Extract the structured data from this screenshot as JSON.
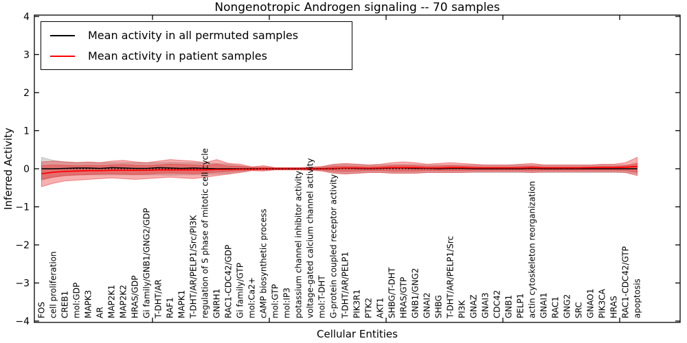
{
  "chart_data": {
    "type": "line",
    "title": "Nongenotropic Androgen signaling -- 70 samples",
    "xlabel": "Cellular Entities",
    "ylabel": "Inferred Activity",
    "ylim": [
      -4,
      4
    ],
    "grid": false,
    "legend_position": "upper left",
    "zero_reference_line": {
      "y": 0,
      "style": "dotted",
      "color": "#000000"
    },
    "yticks": [
      {
        "v": 4,
        "label": "4"
      },
      {
        "v": 3,
        "label": "3"
      },
      {
        "v": 2,
        "label": "2"
      },
      {
        "v": 1,
        "label": "1"
      },
      {
        "v": 0,
        "label": "0"
      },
      {
        "v": -1,
        "label": "−1"
      },
      {
        "v": -2,
        "label": "−2"
      },
      {
        "v": -3,
        "label": "−3"
      },
      {
        "v": -4,
        "label": "−4"
      }
    ],
    "xtick_units": [
      10,
      20,
      30,
      40,
      50
    ],
    "categories": [
      "FOS",
      "cell proliferation",
      "CREB1",
      "mol:GDP",
      "MAPK3",
      "AR",
      "MAP2K1",
      "MAP2K2",
      "HRAS/GDP",
      "Gi family/GNB1/GNG2/GDP",
      "T-DHT/AR",
      "RAF1",
      "MAPK1",
      "T-DHT/AR/PELP1/Src/PI3K",
      "regulation of S phase of mitotic cell cycle",
      "GNRH1",
      "RAC1-CDC42/GDP",
      "Gi family/GTP",
      "mol:Ca2+",
      "cAMP biosynthetic process",
      "mol:GTP",
      "mol:IP3",
      "potassium channel inhibitor activity",
      "voltage-gated calcium channel activity",
      "mol:T-DHT",
      "G-protein coupled receptor activity",
      "T-DHT/AR/PELP1",
      "PIK3R1",
      "PTK2",
      "AKT1",
      "SHBG/T-DHT",
      "HRAS/GTP",
      "GNB1/GNG2",
      "GNAI2",
      "SHBG",
      "T-DHT/AR/PELP1/Src",
      "PI3K",
      "GNAZ",
      "GNAI3",
      "CDC42",
      "GNB1",
      "PELP1",
      "actin cytoskeleton reorganization",
      "GNAI1",
      "RAC1",
      "GNG2",
      "SRC",
      "GNAO1",
      "PIK3CA",
      "HRAS",
      "RAC1-CDC42/GTP",
      "apoptosis"
    ],
    "series": [
      {
        "name": "Mean activity in all permuted samples",
        "color": "#000000",
        "values": [
          0.0,
          0.0,
          0.01,
          0.02,
          0.02,
          0.01,
          0.03,
          0.02,
          0.01,
          0.01,
          0.03,
          0.02,
          0.01,
          0.02,
          0.01,
          0.0,
          0.0,
          0.0,
          0.0,
          0.0,
          0.0,
          0.0,
          0.0,
          0.0,
          0.0,
          0.0,
          0.02,
          0.01,
          0.0,
          0.01,
          0.02,
          0.02,
          0.01,
          0.01,
          0.0,
          0.01,
          0.01,
          0.0,
          0.0,
          0.0,
          0.0,
          0.0,
          0.01,
          0.0,
          0.0,
          0.0,
          0.0,
          0.0,
          0.0,
          0.0,
          0.0,
          0.0
        ]
      },
      {
        "name": "Mean activity in patient samples",
        "color": "#ff0000",
        "values": [
          -0.13,
          -0.09,
          -0.07,
          -0.06,
          -0.05,
          -0.05,
          -0.04,
          -0.04,
          -0.04,
          -0.04,
          -0.03,
          -0.03,
          -0.03,
          -0.03,
          -0.03,
          -0.02,
          -0.02,
          -0.01,
          -0.01,
          0.0,
          0.0,
          0.0,
          0.0,
          0.0,
          0.0,
          0.01,
          0.02,
          0.02,
          0.01,
          0.02,
          0.03,
          0.03,
          0.03,
          0.02,
          0.02,
          0.03,
          0.03,
          0.02,
          0.02,
          0.02,
          0.02,
          0.02,
          0.03,
          0.02,
          0.02,
          0.02,
          0.02,
          0.03,
          0.03,
          0.03,
          0.04,
          0.06
        ]
      }
    ],
    "bands": [
      {
        "name": "permuted-samples-std-band",
        "color": "#aaaaaa",
        "opacity": 0.45,
        "upper": [
          0.3,
          0.22,
          0.18,
          0.17,
          0.16,
          0.16,
          0.16,
          0.16,
          0.16,
          0.16,
          0.16,
          0.17,
          0.16,
          0.16,
          0.15,
          0.14,
          0.12,
          0.08,
          0.04,
          0.04,
          0.03,
          0.03,
          0.03,
          0.03,
          0.05,
          0.1,
          0.12,
          0.12,
          0.1,
          0.1,
          0.11,
          0.11,
          0.11,
          0.1,
          0.1,
          0.1,
          0.1,
          0.1,
          0.1,
          0.1,
          0.1,
          0.1,
          0.1,
          0.1,
          0.1,
          0.1,
          0.1,
          0.1,
          0.1,
          0.1,
          0.1,
          0.1
        ],
        "lower": [
          -0.3,
          -0.22,
          -0.18,
          -0.17,
          -0.16,
          -0.16,
          -0.16,
          -0.16,
          -0.16,
          -0.16,
          -0.16,
          -0.17,
          -0.16,
          -0.16,
          -0.15,
          -0.14,
          -0.12,
          -0.08,
          -0.04,
          -0.04,
          -0.03,
          -0.03,
          -0.03,
          -0.03,
          -0.05,
          -0.1,
          -0.12,
          -0.12,
          -0.1,
          -0.1,
          -0.11,
          -0.11,
          -0.11,
          -0.1,
          -0.1,
          -0.1,
          -0.1,
          -0.1,
          -0.1,
          -0.1,
          -0.1,
          -0.1,
          -0.1,
          -0.1,
          -0.1,
          -0.1,
          -0.1,
          -0.1,
          -0.1,
          -0.1,
          -0.1,
          -0.14
        ]
      },
      {
        "name": "patient-samples-outer-band",
        "color": "#e83030",
        "opacity": 0.38,
        "upper": [
          0.18,
          0.2,
          0.18,
          0.16,
          0.18,
          0.16,
          0.2,
          0.22,
          0.18,
          0.16,
          0.2,
          0.24,
          0.22,
          0.2,
          0.16,
          0.24,
          0.14,
          0.12,
          0.05,
          0.08,
          0.03,
          0.03,
          0.03,
          0.04,
          0.06,
          0.12,
          0.14,
          0.12,
          0.1,
          0.12,
          0.16,
          0.18,
          0.16,
          0.12,
          0.14,
          0.16,
          0.14,
          0.12,
          0.1,
          0.1,
          0.1,
          0.12,
          0.14,
          0.1,
          0.1,
          0.1,
          0.1,
          0.1,
          0.12,
          0.12,
          0.16,
          0.3
        ],
        "lower": [
          -0.47,
          -0.38,
          -0.32,
          -0.3,
          -0.28,
          -0.26,
          -0.24,
          -0.26,
          -0.28,
          -0.26,
          -0.24,
          -0.22,
          -0.24,
          -0.26,
          -0.22,
          -0.18,
          -0.14,
          -0.1,
          -0.05,
          -0.06,
          -0.03,
          -0.03,
          -0.03,
          -0.04,
          -0.06,
          -0.12,
          -0.14,
          -0.12,
          -0.1,
          -0.1,
          -0.12,
          -0.12,
          -0.12,
          -0.1,
          -0.1,
          -0.1,
          -0.1,
          -0.08,
          -0.08,
          -0.08,
          -0.08,
          -0.08,
          -0.1,
          -0.08,
          -0.08,
          -0.08,
          -0.08,
          -0.08,
          -0.08,
          -0.08,
          -0.1,
          -0.18
        ]
      },
      {
        "name": "patient-samples-inner-band",
        "color": "#e83030",
        "opacity": 0.38,
        "upper": [
          0.08,
          0.1,
          0.09,
          0.08,
          0.09,
          0.08,
          0.1,
          0.11,
          0.09,
          0.08,
          0.1,
          0.12,
          0.11,
          0.1,
          0.08,
          0.12,
          0.07,
          0.06,
          0.03,
          0.04,
          0.02,
          0.02,
          0.02,
          0.02,
          0.03,
          0.06,
          0.07,
          0.06,
          0.05,
          0.06,
          0.08,
          0.09,
          0.08,
          0.06,
          0.07,
          0.08,
          0.07,
          0.06,
          0.05,
          0.05,
          0.05,
          0.06,
          0.07,
          0.05,
          0.05,
          0.05,
          0.05,
          0.05,
          0.06,
          0.06,
          0.08,
          0.15
        ],
        "lower": [
          -0.28,
          -0.22,
          -0.18,
          -0.16,
          -0.15,
          -0.14,
          -0.13,
          -0.14,
          -0.15,
          -0.14,
          -0.12,
          -0.11,
          -0.12,
          -0.13,
          -0.11,
          -0.09,
          -0.07,
          -0.05,
          -0.03,
          -0.03,
          -0.02,
          -0.02,
          -0.02,
          -0.02,
          -0.03,
          -0.06,
          -0.07,
          -0.06,
          -0.05,
          -0.05,
          -0.06,
          -0.06,
          -0.06,
          -0.05,
          -0.05,
          -0.05,
          -0.05,
          -0.04,
          -0.04,
          -0.04,
          -0.04,
          -0.04,
          -0.05,
          -0.04,
          -0.04,
          -0.04,
          -0.04,
          -0.04,
          -0.04,
          -0.04,
          -0.05,
          -0.09
        ]
      }
    ]
  }
}
